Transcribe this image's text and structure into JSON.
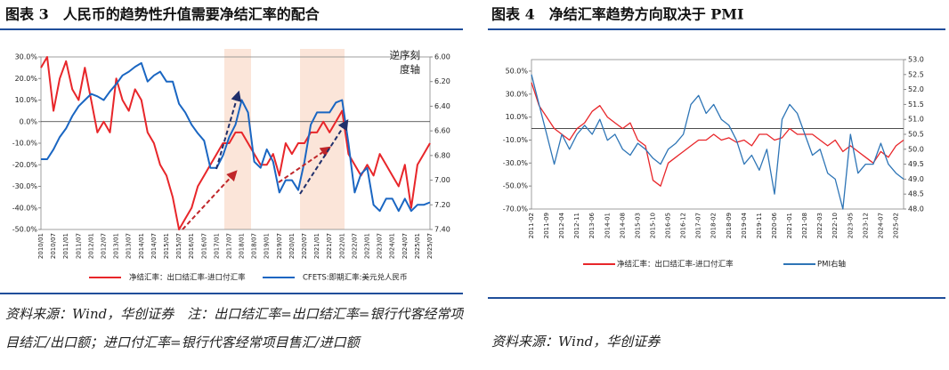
{
  "chart_data": [
    {
      "type": "line",
      "title": "图表 3　人民币的趋势性升值需要净结汇率的配合",
      "annotation": "逆序刻度轴",
      "categories": [
        "2010/01",
        null,
        "2010/07",
        null,
        "2011/01",
        null,
        "2011/07",
        null,
        "2012/01",
        null,
        "2012/07",
        null,
        "2013/01",
        null,
        "2013/07",
        null,
        "2014/01",
        null,
        "2014/07",
        null,
        "2015/01",
        null,
        "2015/07",
        null,
        "2016/01",
        null,
        "2016/07",
        null,
        "2017/01",
        null,
        "2017/07",
        null,
        "2018/01",
        null,
        "2018/07",
        null,
        "2019/01",
        null,
        "2019/07",
        null,
        "2020/01",
        null,
        "2020/07",
        null,
        "2021/01",
        null,
        "2021/07",
        null,
        "2022/01",
        null,
        "2022/07",
        null,
        "2023/01",
        null,
        "2023/07",
        null,
        "2024/01",
        null,
        "2024/07",
        null,
        "2025/01",
        null,
        "2025/07"
      ],
      "series": [
        {
          "name": "净结汇率：出口结汇率-进口付汇率",
          "color": "#e8262a",
          "axis": "y",
          "values": [
            25,
            30,
            5,
            20,
            28,
            15,
            10,
            25,
            10,
            -5,
            0,
            -5,
            20,
            10,
            5,
            15,
            10,
            -5,
            -10,
            -20,
            -25,
            -35,
            -50,
            -45,
            -40,
            -30,
            -25,
            -20,
            -15,
            -10,
            -10,
            -5,
            -5,
            -10,
            -15,
            -20,
            -20,
            -15,
            -25,
            -10,
            -15,
            -10,
            -10,
            -5,
            -5,
            0,
            -5,
            0,
            5,
            -15,
            -20,
            -25,
            -20,
            -25,
            -15,
            -20,
            -25,
            -30,
            -20,
            -40,
            -20,
            -15,
            -10
          ]
        },
        {
          "name": "CFETS:即期汇率:美元兑人民币",
          "color": "#1a66c2",
          "axis": "y2",
          "values": [
            6.83,
            6.83,
            6.75,
            6.65,
            6.58,
            6.48,
            6.4,
            6.35,
            6.3,
            6.32,
            6.35,
            6.28,
            6.22,
            6.15,
            6.12,
            6.08,
            6.05,
            6.2,
            6.15,
            6.12,
            6.2,
            6.2,
            6.38,
            6.45,
            6.55,
            6.62,
            6.68,
            6.9,
            6.9,
            6.8,
            6.65,
            6.55,
            6.35,
            6.45,
            6.85,
            6.9,
            6.75,
            6.85,
            7.1,
            7.0,
            7.0,
            7.08,
            6.85,
            6.55,
            6.45,
            6.45,
            6.45,
            6.37,
            6.35,
            6.7,
            7.1,
            6.95,
            6.9,
            7.2,
            7.25,
            7.15,
            7.15,
            7.25,
            7.15,
            7.25,
            7.2,
            7.2,
            7.18
          ]
        }
      ],
      "ylim": [
        -50,
        30
      ],
      "yticks": [
        {
          "value": -50,
          "label": "-50.0%"
        },
        {
          "value": -40,
          "label": "-40.0%"
        },
        {
          "value": -30,
          "label": "-30.0%"
        },
        {
          "value": -20,
          "label": "-20.0%"
        },
        {
          "value": -10,
          "label": "-10.0%"
        },
        {
          "value": 0,
          "label": "0.0%"
        },
        {
          "value": 10,
          "label": "10.0%"
        },
        {
          "value": 20,
          "label": "20.0%"
        },
        {
          "value": 30,
          "label": "30.0%"
        }
      ],
      "y2lim": [
        7.4,
        6.0
      ],
      "y2ticks": [
        {
          "value": 7.4,
          "label": "7.40"
        },
        {
          "value": 7.2,
          "label": "7.20"
        },
        {
          "value": 7.0,
          "label": "7.00"
        },
        {
          "value": 6.8,
          "label": "6.80"
        },
        {
          "value": 6.6,
          "label": "6.60"
        },
        {
          "value": 6.4,
          "label": "6.40"
        },
        {
          "value": 6.2,
          "label": "6.20"
        },
        {
          "value": 6.0,
          "label": "6.00"
        }
      ],
      "source": "资料来源：Wind，华创证券　注：出口结汇率=出口结汇率=银行代客经常项目结汇/出口额；进口付汇率=银行代客经常项目售汇/进口额"
    },
    {
      "type": "line",
      "title": "图表 4　净结汇率趋势方向取决于 PMI",
      "categories": [
        "2011-02",
        null,
        "2011-09",
        null,
        "2012-04",
        null,
        "2012-11",
        null,
        "2013-06",
        null,
        "2014-01",
        null,
        "2014-08",
        null,
        "2015-03",
        null,
        "2015-10",
        null,
        "2016-05",
        null,
        "2016-12",
        null,
        "2017-07",
        null,
        "2018-02",
        null,
        "2018-09",
        null,
        "2019-04",
        null,
        "2019-11",
        null,
        "2020-06",
        null,
        "2021-01",
        null,
        "2021-08",
        null,
        "2022-03",
        null,
        "2022-10",
        null,
        "2023-05",
        null,
        "2023-12",
        null,
        "2024-07",
        null,
        "2025-02",
        null
      ],
      "series": [
        {
          "name": "净结汇率：出口结汇率-进口付汇率",
          "color": "#e8262a",
          "axis": "y",
          "values": [
            40,
            20,
            10,
            0,
            -5,
            -10,
            0,
            5,
            15,
            20,
            10,
            5,
            0,
            5,
            -10,
            -15,
            -45,
            -50,
            -30,
            -25,
            -20,
            -15,
            -10,
            -10,
            -5,
            -10,
            -8,
            -12,
            -10,
            -15,
            -5,
            -5,
            -10,
            -8,
            0,
            -5,
            -5,
            -5,
            -10,
            -15,
            -10,
            -20,
            -15,
            -20,
            -25,
            -30,
            -20,
            -25,
            -15,
            -10
          ]
        },
        {
          "name": "PMI右轴",
          "color": "#2e75b6",
          "axis": "y2",
          "values": [
            52.5,
            51.5,
            50.5,
            49.5,
            50.5,
            50,
            50.5,
            50.8,
            50.5,
            51,
            50.3,
            50.5,
            50,
            49.8,
            50.2,
            50,
            49.7,
            49.5,
            50,
            50.2,
            50.5,
            51.5,
            51.8,
            51.2,
            51.5,
            51,
            50.8,
            50.3,
            49.5,
            49.8,
            49.3,
            50,
            48.5,
            51,
            51.5,
            51.2,
            50.5,
            49.8,
            50,
            49.2,
            49,
            48,
            50.5,
            49.2,
            49.5,
            49.5,
            50.2,
            49.5,
            49.2,
            49
          ]
        }
      ],
      "ylim": [
        -70,
        60
      ],
      "yticks": [
        {
          "value": -70,
          "label": "-70.0%"
        },
        {
          "value": -50,
          "label": "-50.0%"
        },
        {
          "value": -30,
          "label": "-30.0%"
        },
        {
          "value": -10,
          "label": "-10.0%"
        },
        {
          "value": 10,
          "label": "10.0%"
        },
        {
          "value": 30,
          "label": "30.0%"
        },
        {
          "value": 50,
          "label": "50.0%"
        }
      ],
      "y2lim": [
        48,
        53
      ],
      "y2ticks": [
        {
          "value": 48,
          "label": "48.0"
        },
        48.5,
        {
          "value": 49,
          "label": "49.0"
        },
        49.5,
        {
          "value": 50,
          "label": "50.0"
        },
        50.5,
        {
          "value": 51,
          "label": "51.0"
        },
        51.5,
        {
          "value": 52,
          "label": "52.0"
        },
        52.5,
        {
          "value": 53,
          "label": "53.0"
        }
      ],
      "source": "资料来源：Wind，华创证券"
    }
  ]
}
